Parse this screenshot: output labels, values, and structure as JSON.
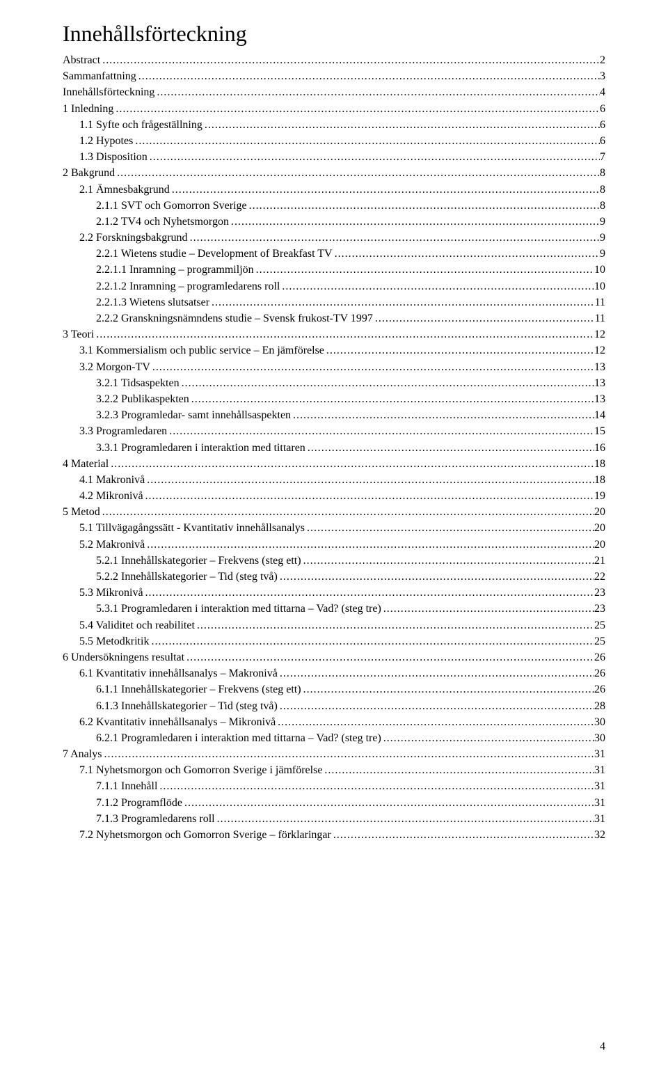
{
  "title": "Innehållsförteckning",
  "page_number": "4",
  "colors": {
    "text": "#000000",
    "background": "#ffffff"
  },
  "typography": {
    "title_fontsize": 32,
    "body_fontsize": 16,
    "font_family": "Times New Roman"
  },
  "toc": [
    {
      "indent": 0,
      "label": "Abstract",
      "page": "2"
    },
    {
      "indent": 0,
      "label": "Sammanfattning",
      "page": "3"
    },
    {
      "indent": 0,
      "label": "Innehållsförteckning",
      "page": "4"
    },
    {
      "indent": 0,
      "label": "1 Inledning",
      "page": "6"
    },
    {
      "indent": 1,
      "label": "1.1 Syfte och frågeställning",
      "page": "6"
    },
    {
      "indent": 1,
      "label": "1.2 Hypotes",
      "page": "6"
    },
    {
      "indent": 1,
      "label": "1.3 Disposition",
      "page": "7"
    },
    {
      "indent": 0,
      "label": "2 Bakgrund",
      "page": "8"
    },
    {
      "indent": 1,
      "label": "2.1 Ämnesbakgrund",
      "page": "8"
    },
    {
      "indent": 2,
      "label": "2.1.1 SVT och Gomorron Sverige",
      "page": "8"
    },
    {
      "indent": 2,
      "label": "2.1.2 TV4 och Nyhetsmorgon",
      "page": "9"
    },
    {
      "indent": 1,
      "label": "2.2 Forskningsbakgrund",
      "page": "9"
    },
    {
      "indent": 2,
      "label": "2.2.1 Wietens studie – Development of Breakfast TV",
      "page": "9"
    },
    {
      "indent": 2,
      "label": "2.2.1.1 Inramning – programmiljön",
      "page": "10"
    },
    {
      "indent": 2,
      "label": "2.2.1.2 Inramning – programledarens roll",
      "page": "10"
    },
    {
      "indent": 2,
      "label": "2.2.1.3 Wietens slutsatser",
      "page": "11"
    },
    {
      "indent": 2,
      "label": "2.2.2 Granskningsnämndens studie – Svensk frukost-TV 1997",
      "page": "11"
    },
    {
      "indent": 0,
      "label": "3 Teori",
      "page": "12"
    },
    {
      "indent": 1,
      "label": "3.1 Kommersialism och public service – En jämförelse",
      "page": "12"
    },
    {
      "indent": 1,
      "label": "3.2 Morgon-TV",
      "page": "13"
    },
    {
      "indent": 2,
      "label": "3.2.1 Tidsaspekten",
      "page": "13"
    },
    {
      "indent": 2,
      "label": "3.2.2 Publikaspekten",
      "page": "13"
    },
    {
      "indent": 2,
      "label": "3.2.3 Programledar- samt innehållsaspekten",
      "page": "14"
    },
    {
      "indent": 1,
      "label": "3.3 Programledaren",
      "page": "15"
    },
    {
      "indent": 2,
      "label": "3.3.1 Programledaren i interaktion med tittaren",
      "page": "16"
    },
    {
      "indent": 0,
      "label": "4 Material",
      "page": "18"
    },
    {
      "indent": 1,
      "label": "4.1 Makronivå",
      "page": "18"
    },
    {
      "indent": 1,
      "label": "4.2 Mikronivå",
      "page": "19"
    },
    {
      "indent": 0,
      "label": "5 Metod",
      "page": "20"
    },
    {
      "indent": 1,
      "label": "5.1 Tillvägagångssätt - Kvantitativ innehållsanalys",
      "page": "20"
    },
    {
      "indent": 1,
      "label": "5.2 Makronivå",
      "page": "20"
    },
    {
      "indent": 2,
      "label": "5.2.1 Innehållskategorier – Frekvens (steg ett)",
      "page": "21"
    },
    {
      "indent": 2,
      "label": "5.2.2 Innehållskategorier – Tid (steg två)",
      "page": "22"
    },
    {
      "indent": 1,
      "label": "5.3 Mikronivå",
      "page": "23"
    },
    {
      "indent": 2,
      "label": "5.3.1 Programledaren i interaktion med tittarna – Vad? (steg tre)",
      "page": "23"
    },
    {
      "indent": 1,
      "label": "5.4 Validitet och reabilitet",
      "page": "25"
    },
    {
      "indent": 1,
      "label": "5.5 Metodkritik",
      "page": "25"
    },
    {
      "indent": 0,
      "label": "6 Undersökningens resultat",
      "page": "26"
    },
    {
      "indent": 1,
      "label": "6.1 Kvantitativ innehållsanalys – Makronivå",
      "page": "26"
    },
    {
      "indent": 2,
      "label": "6.1.1 Innehållskategorier – Frekvens (steg ett)",
      "page": "26"
    },
    {
      "indent": 2,
      "label": "6.1.3 Innehållskategorier – Tid (steg två)",
      "page": "28"
    },
    {
      "indent": 1,
      "label": "6.2 Kvantitativ innehållsanalys – Mikronivå",
      "page": "30"
    },
    {
      "indent": 2,
      "label": "6.2.1 Programledaren i interaktion med tittarna – Vad? (steg tre)",
      "page": "30"
    },
    {
      "indent": 0,
      "label": "7 Analys",
      "page": "31"
    },
    {
      "indent": 1,
      "label": "7.1 Nyhetsmorgon och Gomorron Sverige i jämförelse",
      "page": "31"
    },
    {
      "indent": 2,
      "label": "7.1.1 Innehåll",
      "page": "31"
    },
    {
      "indent": 2,
      "label": "7.1.2 Programflöde",
      "page": "31"
    },
    {
      "indent": 2,
      "label": "7.1.3 Programledarens roll",
      "page": "31"
    },
    {
      "indent": 1,
      "label": "7.2 Nyhetsmorgon och Gomorron Sverige – förklaringar",
      "page": "32"
    }
  ]
}
